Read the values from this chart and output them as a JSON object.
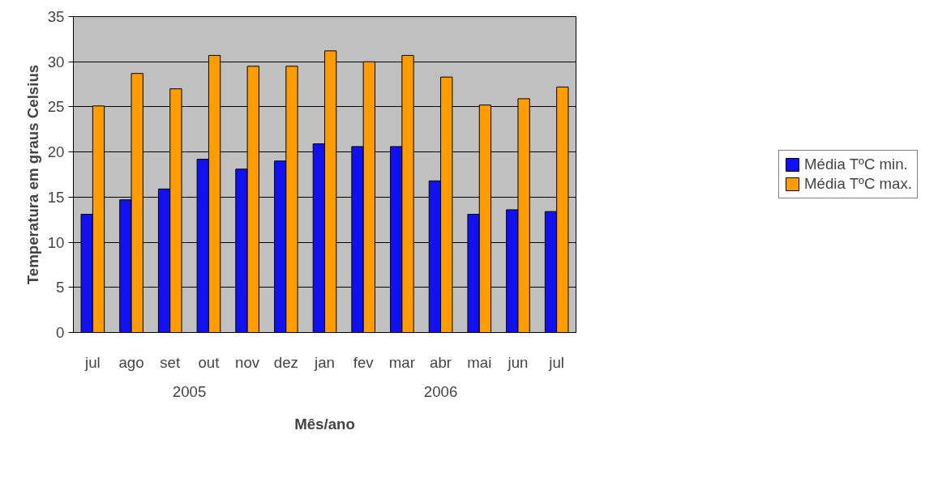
{
  "chart_data": {
    "type": "bar",
    "xlabel": "Mês/ano",
    "ylabel": "Temperatura em graus Celsius",
    "categories": [
      "jul",
      "ago",
      "set",
      "out",
      "nov",
      "dez",
      "jan",
      "fev",
      "mar",
      "abr",
      "mai",
      "jun",
      "jul"
    ],
    "series": [
      {
        "name": "Média TºC min.",
        "color": "#1010f0",
        "values": [
          13.1,
          14.7,
          15.9,
          19.2,
          18.1,
          19.0,
          20.9,
          20.6,
          20.6,
          16.8,
          13.1,
          13.6,
          13.4
        ]
      },
      {
        "name": "Média TºC max.",
        "color": "#ff9c00",
        "values": [
          25.1,
          28.7,
          27.0,
          30.7,
          29.5,
          29.5,
          31.2,
          30.0,
          30.7,
          28.3,
          25.2,
          25.9,
          27.2
        ]
      }
    ],
    "annotations": [
      "2005",
      "2006"
    ],
    "ylim": [
      0,
      35
    ],
    "yticks": [
      0,
      5,
      10,
      15,
      20,
      25,
      30,
      35
    ],
    "grid": "y",
    "legend": "right"
  }
}
